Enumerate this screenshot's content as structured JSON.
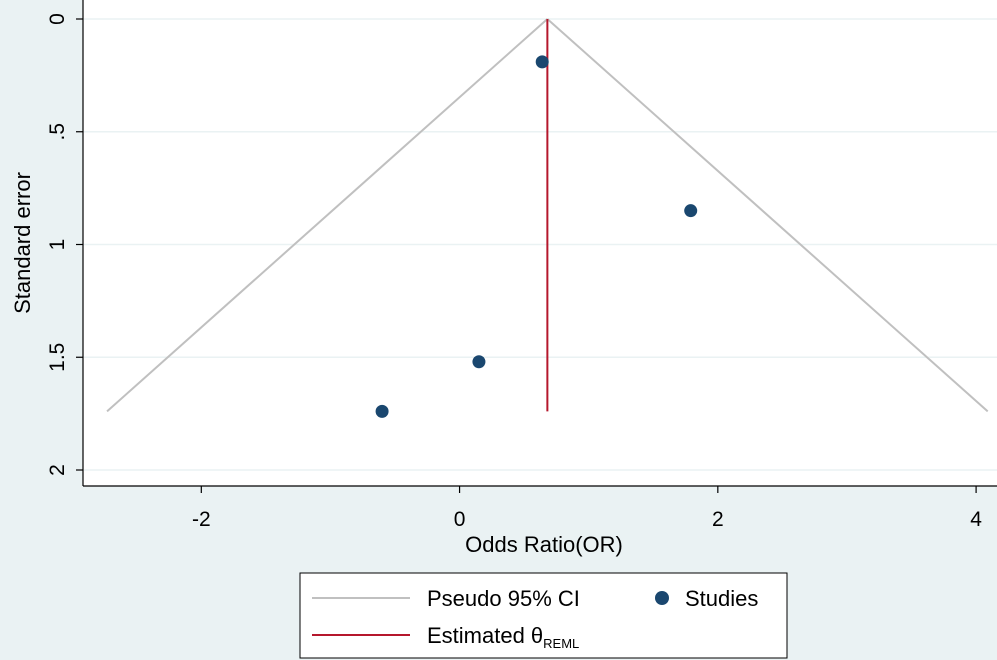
{
  "chart_data": {
    "type": "scatter",
    "xlabel": "Odds Ratio(OR)",
    "ylabel": "Standard error",
    "xlim": [
      -2.8,
      4.1
    ],
    "ylim": [
      0,
      2.07
    ],
    "y_reversed": true,
    "grid": true,
    "x_ticks": [
      {
        "value": -2,
        "label": "-2"
      },
      {
        "value": 0,
        "label": "0"
      },
      {
        "value": 2,
        "label": "2"
      },
      {
        "value": 4,
        "label": "4"
      }
    ],
    "y_ticks": [
      {
        "value": 0,
        "label": "0"
      },
      {
        "value": 0.5,
        "label": ".5"
      },
      {
        "value": 1,
        "label": "1"
      },
      {
        "value": 1.5,
        "label": "1.5"
      },
      {
        "value": 2,
        "label": "2"
      }
    ],
    "studies": {
      "name": "Studies",
      "color": "#1a476f",
      "points": [
        {
          "x": 0.64,
          "y": 0.19
        },
        {
          "x": 1.79,
          "y": 0.85
        },
        {
          "x": 0.15,
          "y": 1.52
        },
        {
          "x": -0.6,
          "y": 1.74
        }
      ]
    },
    "estimate": {
      "name_main": "Estimated θ",
      "name_sub": "REML",
      "x": 0.68,
      "y_range": [
        0,
        1.74
      ],
      "color": "#b5172c"
    },
    "pseudo_ci": {
      "name": "Pseudo 95% CI",
      "color": "#c0c0c0",
      "apex": {
        "x": 0.68,
        "y": 0
      },
      "left_end": {
        "x": -2.73,
        "y": 1.74
      },
      "right_end": {
        "x": 4.09,
        "y": 1.74
      }
    },
    "legend_position": "bottom"
  }
}
